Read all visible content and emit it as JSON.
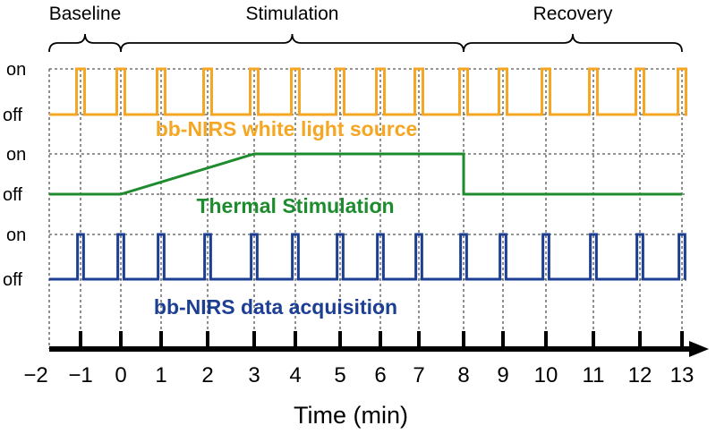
{
  "chart_data": {
    "type": "timing-diagram",
    "xlabel": "Time (min)",
    "x_ticks": [
      -2,
      -1,
      0,
      1,
      2,
      3,
      4,
      5,
      6,
      7,
      8,
      9,
      10,
      11,
      12,
      13
    ],
    "xlim": [
      -2,
      13
    ],
    "grid": true,
    "state_labels": [
      "on",
      "off"
    ],
    "phases": [
      {
        "name": "Baseline",
        "start": -2,
        "end": 0
      },
      {
        "name": "Stimulation",
        "start": 0,
        "end": 8
      },
      {
        "name": "Recovery",
        "start": 8,
        "end": 13
      }
    ],
    "series": [
      {
        "name": "bb-NIRS white light source",
        "color": "#F5A623",
        "pulses_at": [
          -1,
          0,
          1,
          2,
          3,
          4,
          5,
          6,
          7,
          8,
          9,
          10,
          11,
          12,
          13
        ],
        "pulse_width_min": 0.2
      },
      {
        "name": "Thermal Stimulation",
        "color": "#1E8C2E",
        "points": [
          [
            -2,
            0
          ],
          [
            0,
            0
          ],
          [
            3,
            1
          ],
          [
            8,
            1
          ],
          [
            8,
            0
          ],
          [
            13,
            0
          ]
        ]
      },
      {
        "name": "bb-NIRS data acquisition",
        "color": "#1C3F94",
        "pulses_at": [
          -1,
          0,
          1,
          2,
          3,
          4,
          5,
          6,
          7,
          8,
          9,
          10,
          11,
          12,
          13
        ],
        "pulse_width_min": 0.15
      }
    ]
  }
}
